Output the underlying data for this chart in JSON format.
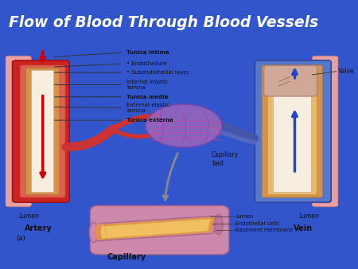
{
  "title": "Flow of Blood Through Blood Vessels",
  "title_color": "#FFFFFF",
  "title_bg_color": "#2255CC",
  "panel_bg": "#FFFFFF",
  "slide_bg": "#3355CC",
  "text_color": "#111111",
  "line_color": "#333333",
  "labels": {
    "tunica_intima": "Tunica intima",
    "endothelium": "• Endothelium",
    "subendothelial": "• Subendothelial layer",
    "internal_elastic": "Internal elastic\nlamina",
    "tunica_media": "Tunica media",
    "external_elastic": "External elastic\nlamina",
    "tunica_externa": "Tunica externa",
    "lumen_artery": "Lumen",
    "artery": "Artery",
    "lumen_vein": "Lumen",
    "vein": "Vein",
    "capillary_bed": "Capillary\nbed",
    "capillary": "Capillary",
    "valve": "Valve",
    "lumen_cap": "Lumen",
    "endothelial_cells": "Endothelial cells",
    "basement_membrane": "Basement membrane",
    "a_label": "(a)"
  },
  "colors": {
    "artery_outer": "#CC2222",
    "artery_mid": "#E07060",
    "artery_inner_orange": "#D4924A",
    "artery_lumen_white": "#F8EEE0",
    "vein_outer_blue": "#5577CC",
    "vein_outer_pink": "#E8A0A0",
    "vein_mid_orange": "#D4924A",
    "vein_inner": "#E8B870",
    "vein_lumen": "#F8EEE0",
    "valve_color": "#D0A898",
    "cap_red": "#CC3333",
    "cap_purple": "#9966BB",
    "cap_blue": "#4455AA",
    "cap_tube_outer": "#CC88AA",
    "cap_tube_mid": "#E8914A",
    "cap_tube_lumen": "#F0C060",
    "arrow_red": "#CC0000",
    "arrow_blue": "#2244CC",
    "arrow_gray": "#888888"
  }
}
